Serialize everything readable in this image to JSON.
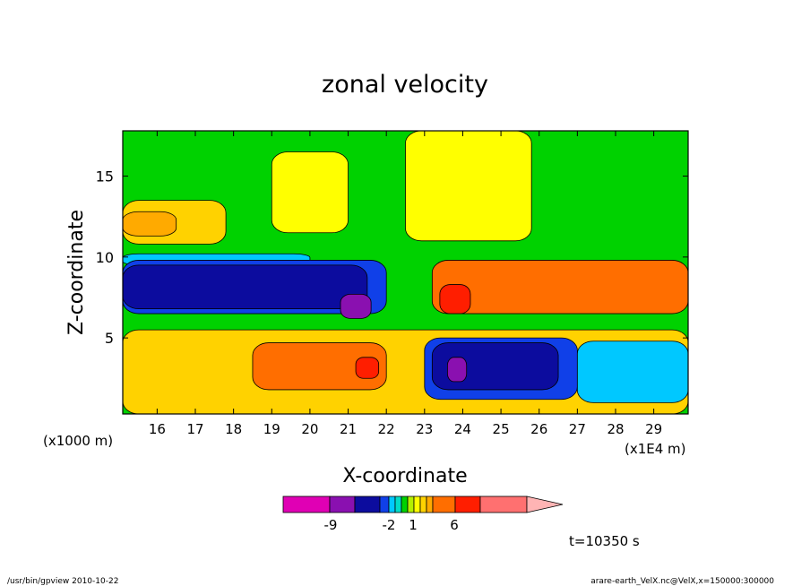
{
  "chart_data": {
    "type": "heatmap",
    "title": "zonal velocity",
    "xlabel": "X-coordinate",
    "ylabel": "Z-coordinate",
    "x_unit_left": "(x1000 m)",
    "x_unit_right": "(x1E4 m)",
    "x_ticks": [
      "16",
      "17",
      "18",
      "19",
      "20",
      "21",
      "22",
      "23",
      "24",
      "25",
      "26",
      "27",
      "28",
      "29"
    ],
    "y_ticks": [
      "5",
      "10",
      "15"
    ],
    "xlim": [
      15.1,
      29.9
    ],
    "ylim": [
      0.3,
      17.8
    ],
    "colorbar": {
      "labels": [
        "-9",
        "-2",
        "1",
        "6"
      ],
      "colors": [
        "#e000b4",
        "#8a10b0",
        "#0c0c9e",
        "#1040e8",
        "#00c8ff",
        "#00dcc8",
        "#00d200",
        "#b4f000",
        "#ffff00",
        "#ffd200",
        "#ffaa00",
        "#ff6e00",
        "#ff1e00",
        "#ff7070",
        "#ffb4b4"
      ]
    },
    "regions": [
      {
        "color": "#00d200",
        "x": [
          15.1,
          29.9
        ],
        "y": [
          0.3,
          17.8
        ]
      },
      {
        "color": "#ffff00",
        "x": [
          22.5,
          25.8
        ],
        "y": [
          11.0,
          17.8
        ]
      },
      {
        "color": "#ffff00",
        "x": [
          19.0,
          21.0
        ],
        "y": [
          11.5,
          16.5
        ]
      },
      {
        "color": "#ffd200",
        "x": [
          15.1,
          17.8
        ],
        "y": [
          10.8,
          13.5
        ]
      },
      {
        "color": "#ffaa00",
        "x": [
          15.1,
          16.5
        ],
        "y": [
          11.3,
          12.8
        ]
      },
      {
        "color": "#00c8ff",
        "x": [
          15.1,
          20.0
        ],
        "y": [
          9.5,
          10.2
        ]
      },
      {
        "color": "#1040e8",
        "x": [
          15.1,
          22.0
        ],
        "y": [
          6.5,
          9.8
        ]
      },
      {
        "color": "#0c0c9e",
        "x": [
          15.1,
          21.5
        ],
        "y": [
          6.8,
          9.5
        ]
      },
      {
        "color": "#8a10b0",
        "x": [
          20.8,
          21.6
        ],
        "y": [
          6.2,
          7.7
        ]
      },
      {
        "color": "#ff6e00",
        "x": [
          23.2,
          29.9
        ],
        "y": [
          6.5,
          9.8
        ]
      },
      {
        "color": "#ff1e00",
        "x": [
          23.4,
          24.2
        ],
        "y": [
          6.5,
          8.3
        ]
      },
      {
        "color": "#ffd200",
        "x": [
          15.1,
          29.9
        ],
        "y": [
          0.3,
          5.5
        ]
      },
      {
        "color": "#ff6e00",
        "x": [
          18.5,
          22.0
        ],
        "y": [
          1.8,
          4.7
        ]
      },
      {
        "color": "#ff1e00",
        "x": [
          21.2,
          21.8
        ],
        "y": [
          2.5,
          3.8
        ]
      },
      {
        "color": "#1040e8",
        "x": [
          23.0,
          27.0
        ],
        "y": [
          1.2,
          5.0
        ]
      },
      {
        "color": "#0c0c9e",
        "x": [
          23.2,
          26.5
        ],
        "y": [
          1.8,
          4.7
        ]
      },
      {
        "color": "#8a10b0",
        "x": [
          23.6,
          24.1
        ],
        "y": [
          2.3,
          3.8
        ]
      },
      {
        "color": "#00c8ff",
        "x": [
          27.0,
          29.9
        ],
        "y": [
          1.0,
          4.8
        ]
      }
    ],
    "annotations": [
      "t=10350 s"
    ]
  },
  "footer": {
    "left": "/usr/bin/gpview  2010-10-22",
    "right": "arare-earth_VelX.nc@VelX,x=150000:300000"
  }
}
